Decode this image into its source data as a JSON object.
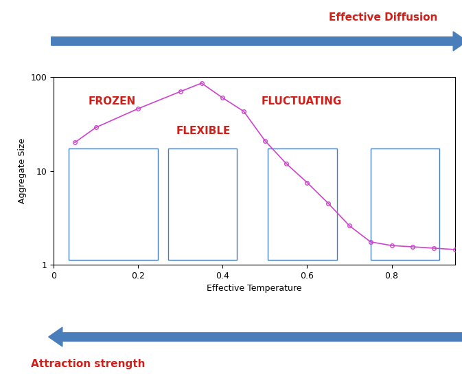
{
  "chart_data": {
    "type": "line",
    "x": [
      0.05,
      0.1,
      0.2,
      0.3,
      0.35,
      0.4,
      0.45,
      0.5,
      0.55,
      0.6,
      0.65,
      0.7,
      0.75,
      0.8,
      0.85,
      0.9,
      0.95
    ],
    "values": [
      20,
      29,
      46,
      70,
      86,
      60,
      43,
      21,
      12,
      7.5,
      4.5,
      2.6,
      1.75,
      1.6,
      1.55,
      1.5,
      1.45
    ],
    "color": "#cc44cc",
    "marker": "o",
    "log": "y",
    "x_label": "Effective Temperature",
    "y_label": "Aggregate Size",
    "xlim": [
      0,
      0.95
    ],
    "ylim": [
      1,
      100
    ],
    "xticks": [
      0,
      0.2,
      0.4,
      0.6,
      0.8
    ],
    "yticks": [
      1,
      10,
      100
    ],
    "annotations": [
      "FROZEN",
      "FLEXIBLE",
      "FLUCTUATING"
    ],
    "arrow_labels": [
      "Effective Diffusion",
      "Attraction strength"
    ]
  }
}
